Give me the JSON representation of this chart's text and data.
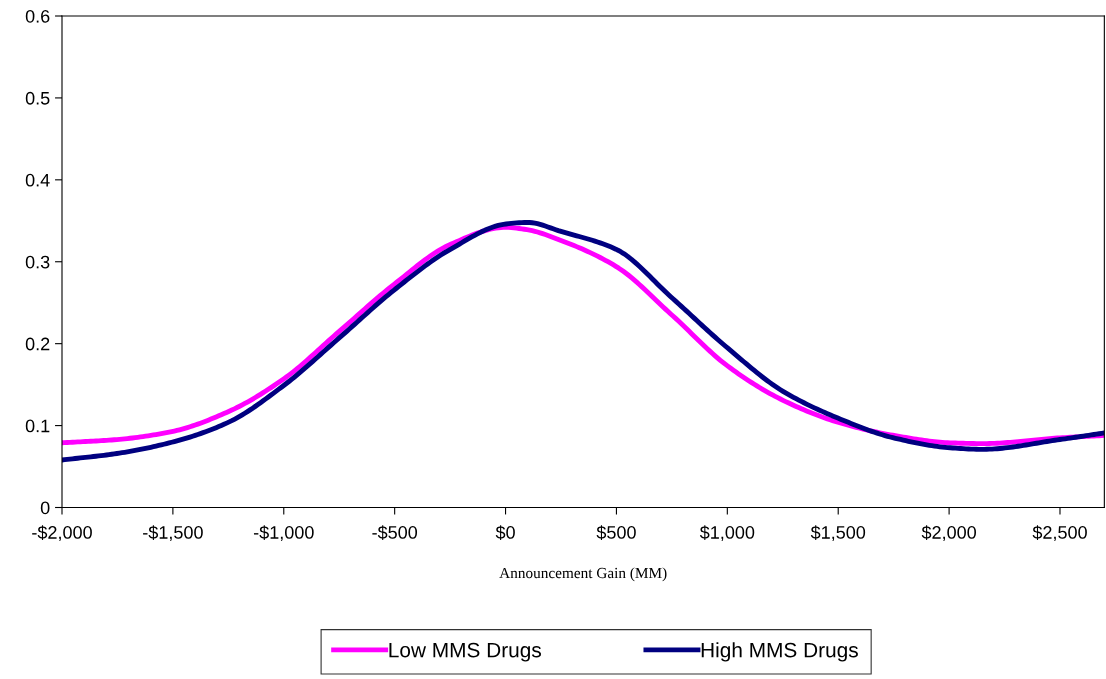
{
  "chart_data": {
    "type": "line",
    "xlabel": "Announcement Gain (MM)",
    "xlim": [
      -2000,
      2700
    ],
    "ylim": [
      0,
      0.6
    ],
    "xticks": [
      {
        "value": -2000,
        "label": "-$2,000"
      },
      {
        "value": -1500,
        "label": "-$1,500"
      },
      {
        "value": -1000,
        "label": "-$1,000"
      },
      {
        "value": -500,
        "label": "-$500"
      },
      {
        "value": 0,
        "label": "$0"
      },
      {
        "value": 500,
        "label": "$500"
      },
      {
        "value": 1000,
        "label": "$1,000"
      },
      {
        "value": 1500,
        "label": "$1,500"
      },
      {
        "value": 2000,
        "label": "$2,000"
      },
      {
        "value": 2500,
        "label": "$2,500"
      }
    ],
    "yticks": [
      0,
      0.1,
      0.2,
      0.3,
      0.4,
      0.5,
      0.6
    ],
    "x": [
      -2000,
      -1750,
      -1500,
      -1250,
      -1000,
      -750,
      -500,
      -250,
      0,
      100,
      250,
      500,
      750,
      1000,
      1250,
      1500,
      1750,
      2000,
      2150,
      2500,
      2700
    ],
    "series": [
      {
        "name": "Low MMS Drugs",
        "color": "#ff00ff",
        "values": [
          0.079,
          0.083,
          0.093,
          0.117,
          0.157,
          0.215,
          0.273,
          0.321,
          0.342,
          0.339,
          0.326,
          0.294,
          0.235,
          0.173,
          0.131,
          0.104,
          0.088,
          0.079,
          0.078,
          0.085,
          0.088
        ]
      },
      {
        "name": "High MMS Drugs",
        "color": "#000080",
        "values": [
          0.058,
          0.066,
          0.08,
          0.104,
          0.149,
          0.207,
          0.266,
          0.315,
          0.346,
          0.348,
          0.337,
          0.315,
          0.256,
          0.195,
          0.142,
          0.109,
          0.085,
          0.073,
          0.071,
          0.083,
          0.091
        ]
      }
    ],
    "grid": false,
    "legend": "bottom",
    "marker": "none",
    "line_style": "solid"
  }
}
